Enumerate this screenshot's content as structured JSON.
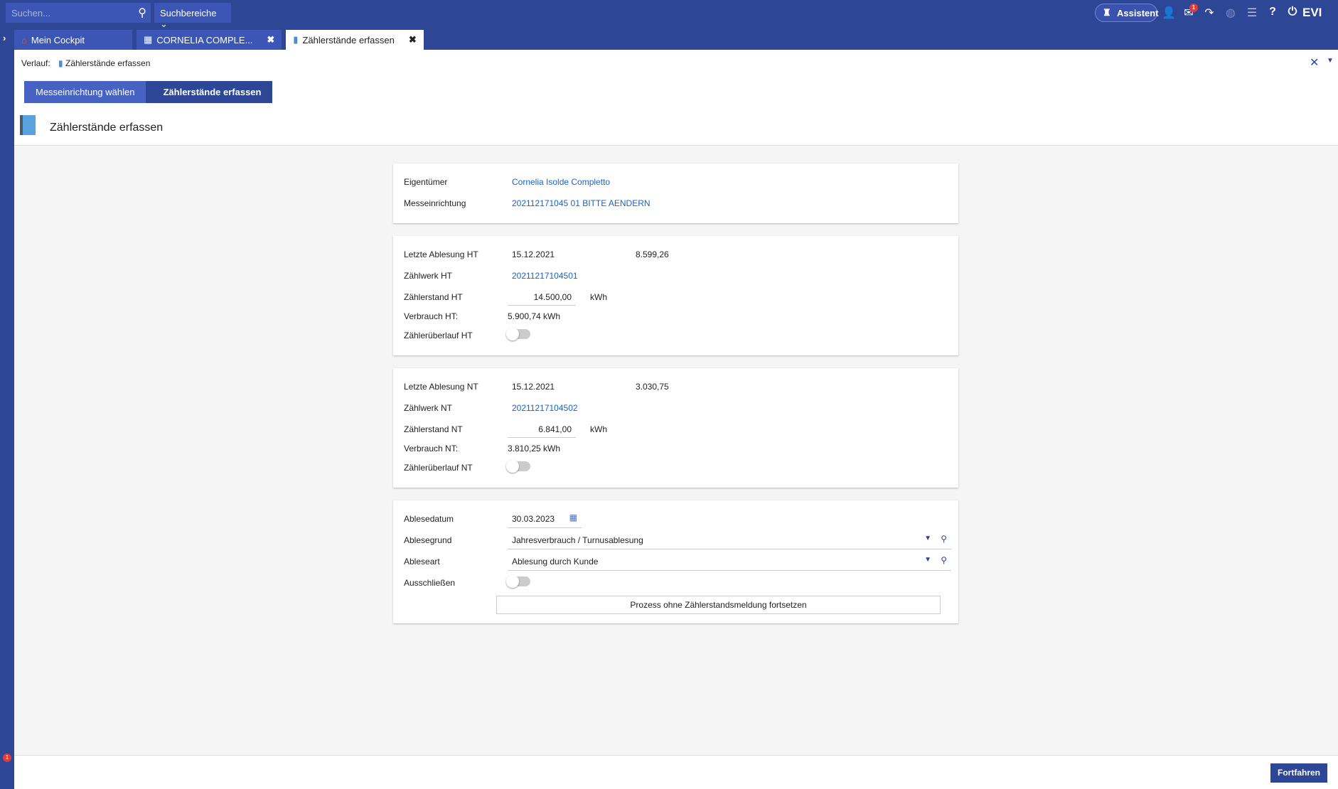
{
  "topbar": {
    "search_placeholder": "Suchen...",
    "search_areas": "Suchbereiche",
    "assistant": "Assistent",
    "notification_count": "1",
    "brand": "EVI"
  },
  "tabs": [
    {
      "label": "Mein Cockpit"
    },
    {
      "label": "CORNELIA COMPLE..."
    },
    {
      "label": "Zählerstände erfassen"
    }
  ],
  "history": {
    "label": "Verlauf:",
    "item": "Zählerstände erfassen"
  },
  "steps": [
    {
      "label": "Messeinrichtung wählen"
    },
    {
      "label": "Zählerstände erfassen"
    }
  ],
  "page_title": "Zählerstände erfassen",
  "owner": {
    "label": "Eigentümer",
    "value": "Cornelia Isolde Completto"
  },
  "meter": {
    "label": "Messeinrichtung",
    "value": "202112171045 01 BITTE AENDERN"
  },
  "ht": {
    "last_label": "Letzte Ablesung HT",
    "last_date": "15.12.2021",
    "last_value": "8.599,26",
    "register_label": "Zählwerk HT",
    "register": "20211217104501",
    "reading_label": "Zählerstand HT",
    "reading": "14.500,00",
    "unit": "kWh",
    "consumption_label": "Verbrauch HT:",
    "consumption": "5.900,74 kWh",
    "overflow_label": "Zählerüberlauf HT",
    "overflow": false
  },
  "nt": {
    "last_label": "Letzte Ablesung NT",
    "last_date": "15.12.2021",
    "last_value": "3.030,75",
    "register_label": "Zählwerk NT",
    "register": "20211217104502",
    "reading_label": "Zählerstand NT",
    "reading": "6.841,00",
    "unit": "kWh",
    "consumption_label": "Verbrauch NT:",
    "consumption": "3.810,25 kWh",
    "overflow_label": "Zählerüberlauf NT",
    "overflow": false
  },
  "reading": {
    "date_label": "Ablesedatum",
    "date": "30.03.2023",
    "reason_label": "Ablesegrund",
    "reason": "Jahresverbrauch / Turnusablesung",
    "type_label": "Ableseart",
    "type": "Ablesung durch Kunde",
    "exclude_label": "Ausschließen",
    "exclude": false,
    "skip_button": "Prozess ohne Zählerstandsmeldung fortsetzen"
  },
  "footer": {
    "continue": "Fortfahren",
    "badge": "1"
  }
}
